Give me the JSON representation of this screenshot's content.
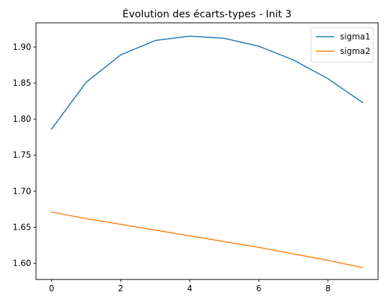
{
  "chart_data": {
    "type": "line",
    "title": "Évolution des écarts-types - Init 3",
    "xlabel": "",
    "ylabel": "",
    "x": [
      0,
      1,
      2,
      3,
      4,
      5,
      6,
      7,
      8,
      9
    ],
    "xlim": [
      -0.45,
      9.45
    ],
    "ylim": [
      1.5775,
      1.9335
    ],
    "xticks": [
      0,
      2,
      4,
      6,
      8
    ],
    "xtick_labels": [
      "0",
      "2",
      "4",
      "6",
      "8"
    ],
    "yticks": [
      1.6,
      1.65,
      1.7,
      1.75,
      1.8,
      1.85,
      1.9
    ],
    "ytick_labels": [
      "1.60",
      "1.65",
      "1.70",
      "1.75",
      "1.80",
      "1.85",
      "1.90"
    ],
    "grid": false,
    "legend_position": "top-right",
    "series": [
      {
        "name": "sigma1",
        "color": "#1f77b4",
        "values": [
          1.786,
          1.851,
          1.889,
          1.909,
          1.915,
          1.912,
          1.901,
          1.882,
          1.856,
          1.823
        ]
      },
      {
        "name": "sigma2",
        "color": "#ff7f0e",
        "values": [
          1.671,
          1.662,
          1.654,
          1.646,
          1.638,
          1.63,
          1.622,
          1.613,
          1.604,
          1.594
        ]
      }
    ]
  }
}
